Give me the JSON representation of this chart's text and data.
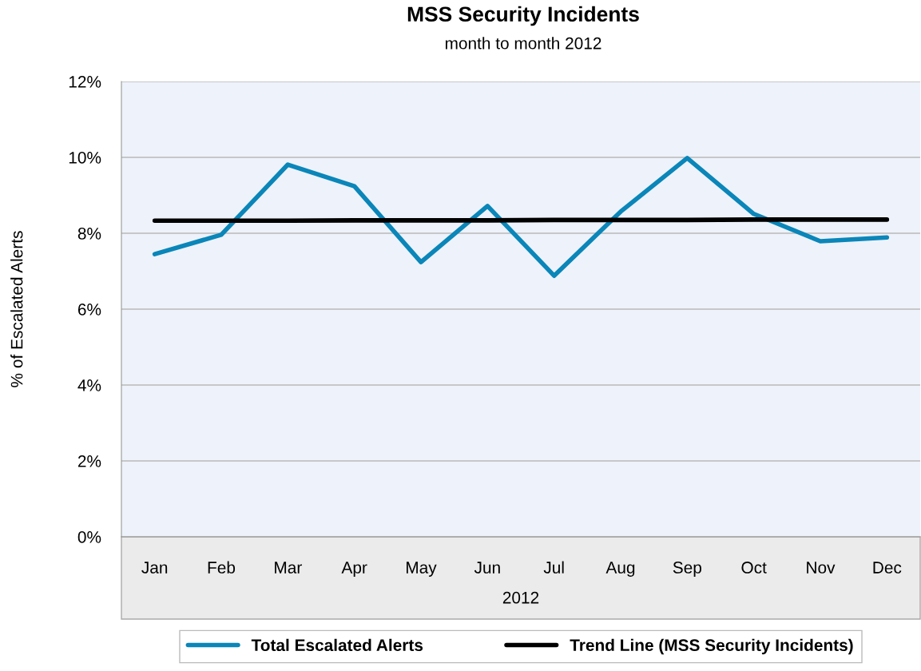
{
  "chart_data": {
    "type": "line",
    "title": "MSS Security Incidents",
    "subtitle": "month to month 2012",
    "xlabel": "2012",
    "ylabel": "% of Escalated Alerts",
    "categories": [
      "Jan",
      "Feb",
      "Mar",
      "Apr",
      "May",
      "Jun",
      "Jul",
      "Aug",
      "Sep",
      "Oct",
      "Nov",
      "Dec"
    ],
    "series": [
      {
        "name": "Total Escalated Alerts",
        "color": "#0a86b9",
        "values": [
          7.45,
          7.96,
          9.81,
          9.24,
          7.24,
          8.72,
          6.88,
          8.57,
          9.98,
          8.51,
          7.79,
          7.89
        ]
      },
      {
        "name": "Trend Line (MSS Security Incidents)",
        "color": "#000000",
        "values": [
          8.33,
          8.33,
          8.33,
          8.34,
          8.34,
          8.34,
          8.35,
          8.35,
          8.35,
          8.36,
          8.36,
          8.36
        ]
      }
    ],
    "ylim": [
      0,
      12
    ],
    "yticks": [
      {
        "value": 0,
        "label": "0%"
      },
      {
        "value": 2,
        "label": "2%"
      },
      {
        "value": 4,
        "label": "4%"
      },
      {
        "value": 6,
        "label": "6%"
      },
      {
        "value": 8,
        "label": "8%"
      },
      {
        "value": 10,
        "label": "10%"
      },
      {
        "value": 12,
        "label": "12%"
      }
    ],
    "grid": "y",
    "legend": "bottom",
    "marker": "none",
    "line_style": "solid"
  }
}
